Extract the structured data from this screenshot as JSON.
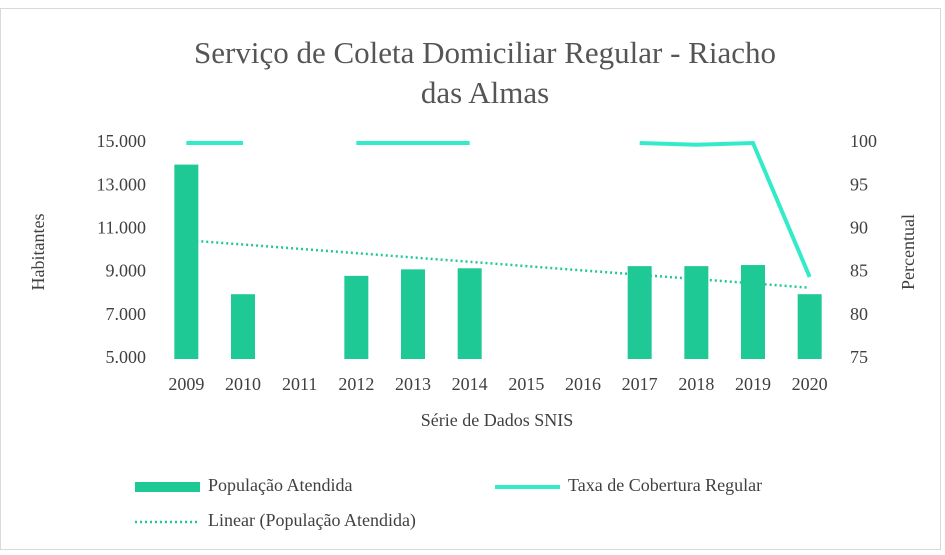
{
  "chart_data": {
    "type": "bar-line",
    "title": "Serviço de Coleta Domiciliar Regular - Riacho das Almas",
    "x_label": "Série de Dados SNIS",
    "y_label": "Habitantes",
    "y2_label": "Percentual",
    "categories": [
      "2009",
      "2010",
      "2011",
      "2012",
      "2013",
      "2014",
      "2015",
      "2016",
      "2017",
      "2018",
      "2019",
      "2020"
    ],
    "series": [
      {
        "name": "População Atendida",
        "type": "bar",
        "color": "#1fc995",
        "values": [
          14000,
          8000,
          null,
          8850,
          9150,
          9200,
          null,
          null,
          9300,
          9300,
          9350,
          8000
        ]
      },
      {
        "name": "Taxa de Cobertura Regular",
        "type": "line",
        "axis": "y2",
        "color": "#33ebc9",
        "values": [
          100,
          100,
          null,
          100,
          100,
          100,
          null,
          null,
          100,
          99.8,
          100,
          84.5
        ]
      },
      {
        "name": "Linear (População Atendida)",
        "type": "trend",
        "color": "#1fc995",
        "values": [
          10500,
          10300,
          10100,
          9900,
          9700,
          9500,
          9300,
          9100,
          8900,
          8700,
          8500,
          8300
        ]
      }
    ],
    "ylim": [
      5000,
      15000
    ],
    "yticks": [
      {
        "value": 5000,
        "label": "5.000"
      },
      {
        "value": 7000,
        "label": "7.000"
      },
      {
        "value": 9000,
        "label": "9.000"
      },
      {
        "value": 11000,
        "label": "11.000"
      },
      {
        "value": 13000,
        "label": "13.000"
      },
      {
        "value": 15000,
        "label": "15.000"
      }
    ],
    "y2lim": [
      75,
      100
    ],
    "y2ticks": [
      75,
      80,
      85,
      90,
      95,
      100
    ],
    "legend": "bottom"
  }
}
